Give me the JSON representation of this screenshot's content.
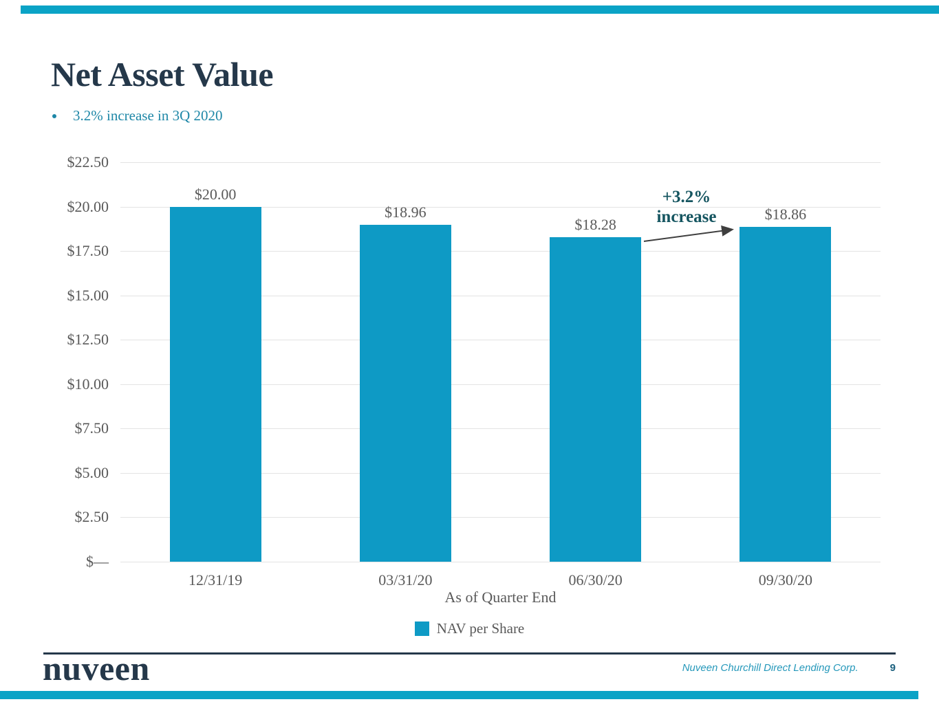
{
  "slide": {
    "title": "Net Asset Value",
    "bullet": "3.2% increase in 3Q 2020"
  },
  "colors": {
    "accent_teal": "#0AA3C6",
    "bar": "#0E9AC5",
    "navy": "#25384A",
    "bullet_teal": "#1E87A7",
    "axis_text": "#595959",
    "gridline": "#E3E3E3",
    "annotation_teal": "#155560",
    "arrow": "#3F3F3F",
    "footer_teal": "#2598BA",
    "page_number": "#1B607E"
  },
  "chart_data": {
    "type": "bar",
    "title": "",
    "categories": [
      "12/31/19",
      "03/31/20",
      "06/30/20",
      "09/30/20"
    ],
    "values": [
      20.0,
      18.96,
      18.28,
      18.86
    ],
    "value_labels": [
      "$20.00",
      "$18.96",
      "$18.28",
      "$18.86"
    ],
    "series_name": "NAV per Share",
    "xlabel": "As of Quarter End",
    "ylabel": "",
    "ylim": [
      0,
      22.5
    ],
    "ytick_step": 2.5,
    "ytick_labels": [
      "$—",
      "$2.50",
      "$5.00",
      "$7.50",
      "$10.00",
      "$12.50",
      "$15.00",
      "$17.50",
      "$20.00",
      "$22.50"
    ],
    "grid": true,
    "legend_position": "bottom",
    "annotation": {
      "line1": "+3.2%",
      "line2": "increase",
      "from_category": "06/30/20",
      "to_category": "09/30/20"
    }
  },
  "legend": {
    "label": "NAV per Share"
  },
  "footer": {
    "brand": "nuveen",
    "company": "Nuveen Churchill Direct Lending Corp.",
    "page_number": "9"
  }
}
